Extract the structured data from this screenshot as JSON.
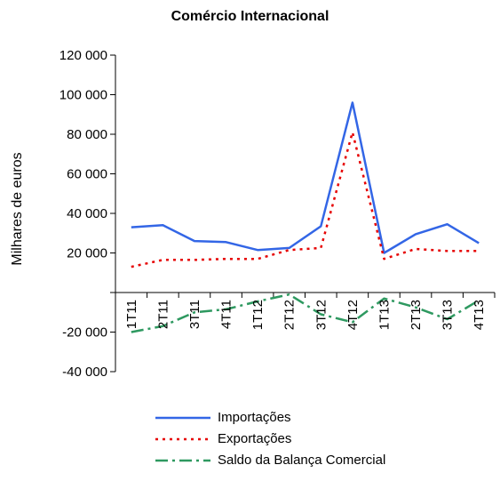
{
  "chart_data": {
    "type": "line",
    "title": "Comércio Internacional",
    "ylabel": "Milhares de euros",
    "xlabel": "",
    "categories": [
      "1T11",
      "2T11",
      "3T11",
      "4T11",
      "1T12",
      "2T12",
      "3T12",
      "4T12",
      "1T13",
      "2T13",
      "3T13",
      "4T13"
    ],
    "ylim": [
      -40000,
      120000
    ],
    "yticks": [
      -40000,
      -20000,
      0,
      20000,
      40000,
      60000,
      80000,
      100000,
      120000
    ],
    "ytick_labels": [
      "-40 000",
      "-20 000",
      "",
      "20 000",
      "40 000",
      "60 000",
      "80 000",
      "100 000",
      "120 000"
    ],
    "grid": false,
    "legend_position": "bottom",
    "series": [
      {
        "name": "Importações",
        "color": "#3366e6",
        "style": "solid",
        "values": [
          33000,
          34000,
          26000,
          25500,
          21500,
          22500,
          33500,
          96000,
          20000,
          29500,
          34500,
          25000
        ]
      },
      {
        "name": "Exportações",
        "color": "#e60000",
        "style": "dotted",
        "values": [
          13000,
          16500,
          16500,
          17000,
          17000,
          21500,
          22500,
          81000,
          17000,
          22000,
          21000,
          21000
        ]
      },
      {
        "name": "Saldo da Balança Comercial",
        "color": "#2e9960",
        "style": "dashdot",
        "values": [
          -20000,
          -17000,
          -10000,
          -8500,
          -4500,
          -1000,
          -11000,
          -15000,
          -3000,
          -7500,
          -13500,
          -4000
        ]
      }
    ]
  }
}
